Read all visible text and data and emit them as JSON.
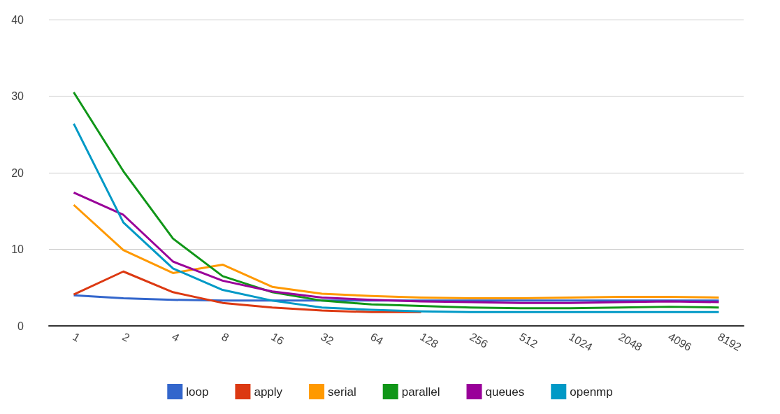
{
  "chart_data": {
    "type": "line",
    "categories": [
      "1",
      "2",
      "4",
      "8",
      "16",
      "32",
      "64",
      "128",
      "256",
      "512",
      "1024",
      "2048",
      "4096",
      "8192"
    ],
    "series": [
      {
        "name": "loop",
        "color": "#3366cc",
        "values": [
          4.0,
          3.6,
          3.4,
          3.3,
          3.3,
          3.3,
          3.3,
          3.3,
          3.3,
          3.3,
          3.3,
          3.3,
          3.3,
          3.3
        ]
      },
      {
        "name": "apply",
        "color": "#dc3912",
        "values": [
          4.1,
          7.1,
          4.4,
          3.0,
          2.4,
          2.0,
          1.8,
          1.8,
          null,
          null,
          null,
          null,
          null,
          null
        ]
      },
      {
        "name": "serial",
        "color": "#ff9900",
        "values": [
          15.8,
          9.9,
          6.9,
          8.0,
          5.1,
          4.2,
          3.9,
          3.7,
          3.6,
          3.6,
          3.7,
          3.8,
          3.8,
          3.7
        ]
      },
      {
        "name": "parallel",
        "color": "#109618",
        "values": [
          30.5,
          20.2,
          11.4,
          6.5,
          4.4,
          3.3,
          2.8,
          2.6,
          2.4,
          2.3,
          2.3,
          2.4,
          2.5,
          2.4
        ]
      },
      {
        "name": "queues",
        "color": "#990099",
        "values": [
          17.4,
          14.5,
          8.4,
          5.9,
          4.5,
          3.7,
          3.4,
          3.2,
          3.1,
          3.0,
          3.0,
          3.1,
          3.2,
          3.1
        ]
      },
      {
        "name": "openmp",
        "color": "#0099c6",
        "values": [
          26.4,
          13.5,
          7.5,
          4.7,
          3.3,
          2.4,
          2.1,
          1.9,
          1.8,
          1.8,
          1.8,
          1.8,
          1.8,
          1.8
        ]
      }
    ],
    "ylim": [
      0,
      40
    ],
    "yticks": [
      0,
      10,
      20,
      30,
      40
    ],
    "grid": "y",
    "legend": "bottom",
    "marker": "none",
    "line_style": "solid"
  }
}
